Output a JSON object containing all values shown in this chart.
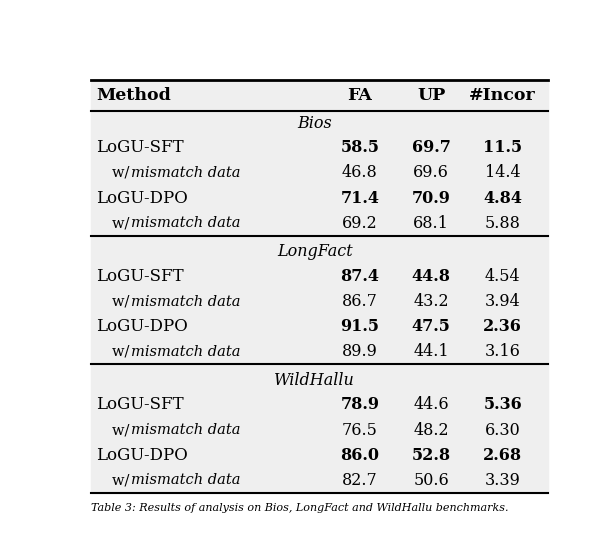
{
  "columns": [
    "Method",
    "FA",
    "UP",
    "#Incor"
  ],
  "sections": [
    {
      "section_name": "Bios",
      "rows": [
        {
          "method": "LoGU-SFT",
          "FA": "58.5",
          "UP": "69.7",
          "Incor": "11.5",
          "bold_FA": true,
          "bold_UP": true,
          "bold_Incor": true,
          "indent": false
        },
        {
          "method": "w/ mismatch data",
          "FA": "46.8",
          "UP": "69.6",
          "Incor": "14.4",
          "bold_FA": false,
          "bold_UP": false,
          "bold_Incor": false,
          "indent": true
        },
        {
          "method": "LoGU-DPO",
          "FA": "71.4",
          "UP": "70.9",
          "Incor": "4.84",
          "bold_FA": true,
          "bold_UP": true,
          "bold_Incor": true,
          "indent": false
        },
        {
          "method": "w/ mismatch data",
          "FA": "69.2",
          "UP": "68.1",
          "Incor": "5.88",
          "bold_FA": false,
          "bold_UP": false,
          "bold_Incor": false,
          "indent": true
        }
      ]
    },
    {
      "section_name": "LongFact",
      "rows": [
        {
          "method": "LoGU-SFT",
          "FA": "87.4",
          "UP": "44.8",
          "Incor": "4.54",
          "bold_FA": true,
          "bold_UP": true,
          "bold_Incor": false,
          "indent": false
        },
        {
          "method": "w/ mismatch data",
          "FA": "86.7",
          "UP": "43.2",
          "Incor": "3.94",
          "bold_FA": false,
          "bold_UP": false,
          "bold_Incor": false,
          "indent": true
        },
        {
          "method": "LoGU-DPO",
          "FA": "91.5",
          "UP": "47.5",
          "Incor": "2.36",
          "bold_FA": true,
          "bold_UP": true,
          "bold_Incor": true,
          "indent": false
        },
        {
          "method": "w/ mismatch data",
          "FA": "89.9",
          "UP": "44.1",
          "Incor": "3.16",
          "bold_FA": false,
          "bold_UP": false,
          "bold_Incor": false,
          "indent": true
        }
      ]
    },
    {
      "section_name": "WildHallu",
      "rows": [
        {
          "method": "LoGU-SFT",
          "FA": "78.9",
          "UP": "44.6",
          "Incor": "5.36",
          "bold_FA": true,
          "bold_UP": false,
          "bold_Incor": true,
          "indent": false
        },
        {
          "method": "w/ mismatch data",
          "FA": "76.5",
          "UP": "48.2",
          "Incor": "6.30",
          "bold_FA": false,
          "bold_UP": false,
          "bold_Incor": false,
          "indent": true
        },
        {
          "method": "LoGU-DPO",
          "FA": "86.0",
          "UP": "52.8",
          "Incor": "2.68",
          "bold_FA": true,
          "bold_UP": true,
          "bold_Incor": true,
          "indent": false
        },
        {
          "method": "w/ mismatch data",
          "FA": "82.7",
          "UP": "50.6",
          "Incor": "3.39",
          "bold_FA": false,
          "bold_UP": false,
          "bold_Incor": false,
          "indent": true
        }
      ]
    }
  ],
  "font_size": 11.5,
  "header_font_size": 12.5,
  "small_font_size": 10.5,
  "caption": "Table 3: Results of analysis on Bios, LongFact and WildHallu benchmarks."
}
